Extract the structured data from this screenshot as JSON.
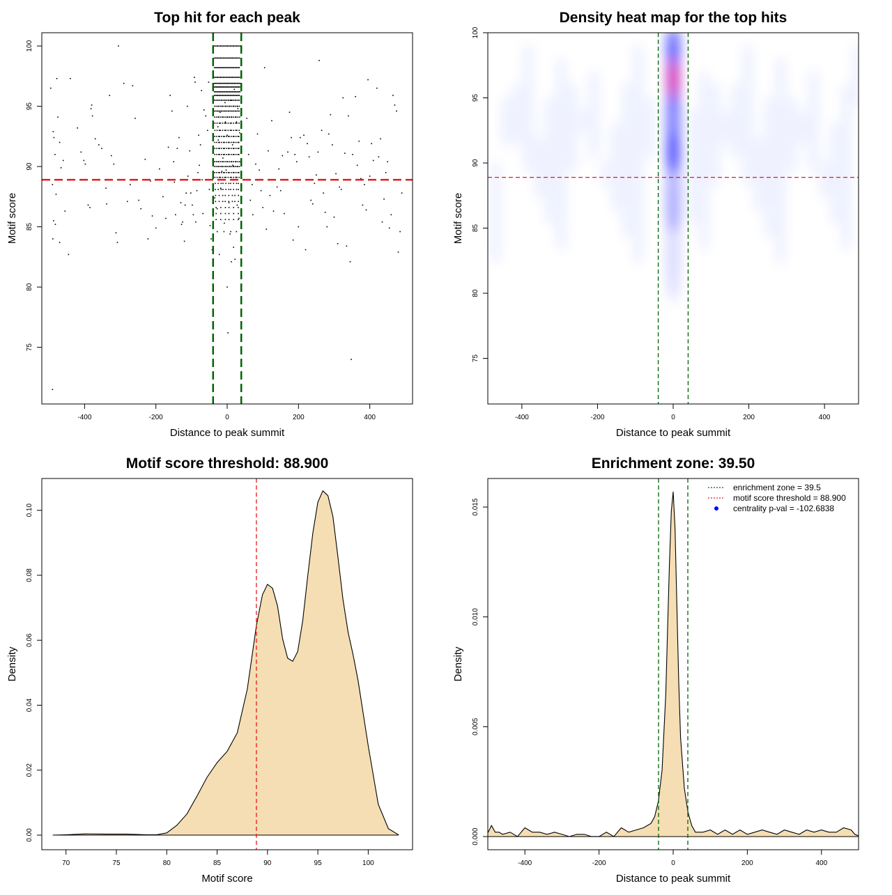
{
  "chart_data": [
    {
      "id": "scatter",
      "type": "scatter",
      "title": "Top hit for each peak",
      "xlabel": "Distance to peak summit",
      "ylabel": "Motif score",
      "xlim": [
        -520,
        520
      ],
      "ylim": [
        70.3,
        101.1
      ],
      "xticks": [
        -400,
        -200,
        0,
        200,
        400
      ],
      "yticks": [
        75,
        80,
        85,
        90,
        95,
        100
      ],
      "hline": 88.9,
      "vlines": [
        -39.5,
        39.5
      ],
      "colors": {
        "points": "#000000",
        "hline": "#e31a1c",
        "vlines": "#006400"
      },
      "points": [
        [
          -490,
          71.5
        ],
        [
          -495,
          96.5
        ],
        [
          -488,
          92.9
        ],
        [
          -486,
          92.4
        ],
        [
          -483,
          91.0
        ],
        [
          -490,
          88.5
        ],
        [
          -480,
          87.7
        ],
        [
          -478,
          97.3
        ],
        [
          -475,
          94.1
        ],
        [
          -470,
          92.0
        ],
        [
          -466,
          89.9
        ],
        [
          -460,
          90.5
        ],
        [
          -455,
          86.3
        ],
        [
          -487,
          85.5
        ],
        [
          -482,
          85.2
        ],
        [
          -489,
          84.0
        ],
        [
          -470,
          83.7
        ],
        [
          -445,
          82.7
        ],
        [
          -440,
          97.3
        ],
        [
          -420,
          93.2
        ],
        [
          -410,
          91.2
        ],
        [
          -402,
          90.5
        ],
        [
          -398,
          90.2
        ],
        [
          -402,
          88.9
        ],
        [
          -390,
          86.8
        ],
        [
          -385,
          86.6
        ],
        [
          -380,
          95.1
        ],
        [
          -382,
          94.8
        ],
        [
          -378,
          94.2
        ],
        [
          -370,
          92.3
        ],
        [
          -360,
          91.8
        ],
        [
          -352,
          91.5
        ],
        [
          -340,
          88.2
        ],
        [
          -338,
          86.9
        ],
        [
          -330,
          95.9
        ],
        [
          -325,
          90.9
        ],
        [
          -318,
          90.2
        ],
        [
          -312,
          84.5
        ],
        [
          -308,
          83.7
        ],
        [
          -305,
          100.0
        ],
        [
          -290,
          96.9
        ],
        [
          -280,
          87.1
        ],
        [
          -272,
          88.5
        ],
        [
          -265,
          96.7
        ],
        [
          -258,
          94.0
        ],
        [
          -248,
          87.2
        ],
        [
          -242,
          86.5
        ],
        [
          -230,
          90.6
        ],
        [
          -222,
          84.0
        ],
        [
          -215,
          88.8
        ],
        [
          -210,
          85.9
        ],
        [
          -200,
          84.9
        ],
        [
          -190,
          89.8
        ],
        [
          -180,
          87.5
        ],
        [
          -172,
          85.7
        ],
        [
          -165,
          91.6
        ],
        [
          -160,
          95.9
        ],
        [
          -155,
          94.6
        ],
        [
          -150,
          90.4
        ],
        [
          -148,
          88.7
        ],
        [
          -145,
          86.0
        ],
        [
          -140,
          91.5
        ],
        [
          -135,
          92.4
        ],
        [
          -130,
          87.0
        ],
        [
          -128,
          85.2
        ],
        [
          -125,
          85.4
        ],
        [
          -120,
          83.8
        ],
        [
          -118,
          86.8
        ],
        [
          -115,
          87.8
        ],
        [
          -112,
          95.0
        ],
        [
          -110,
          89.2
        ],
        [
          -105,
          91.3
        ],
        [
          -102,
          87.8
        ],
        [
          -98,
          86.8
        ],
        [
          -95,
          86.0
        ],
        [
          -92,
          97.4
        ],
        [
          -90,
          97.0
        ],
        [
          -88,
          85.4
        ],
        [
          -85,
          88.0
        ],
        [
          -82,
          89.5
        ],
        [
          -80,
          92.6
        ],
        [
          -78,
          90.1
        ],
        [
          -75,
          91.8
        ],
        [
          -72,
          96.3
        ],
        [
          -70,
          88.9
        ],
        [
          -68,
          86.1
        ],
        [
          -65,
          94.7
        ],
        [
          -60,
          94.2
        ],
        [
          -55,
          93.0
        ],
        [
          -52,
          97.0
        ],
        [
          -50,
          88.1
        ],
        [
          -48,
          85.1
        ],
        [
          -45,
          84.0
        ],
        [
          -42,
          83.1
        ],
        [
          55,
          94.0
        ],
        [
          60,
          91.0
        ],
        [
          65,
          87.2
        ],
        [
          70,
          88.5
        ],
        [
          72,
          86.0
        ],
        [
          80,
          90.2
        ],
        [
          85,
          92.7
        ],
        [
          90,
          89.7
        ],
        [
          95,
          88.0
        ],
        [
          100,
          86.6
        ],
        [
          105,
          98.2
        ],
        [
          110,
          84.8
        ],
        [
          115,
          91.3
        ],
        [
          120,
          87.6
        ],
        [
          125,
          93.8
        ],
        [
          130,
          86.3
        ],
        [
          140,
          88.3
        ],
        [
          145,
          89.8
        ],
        [
          150,
          88.0
        ],
        [
          155,
          90.9
        ],
        [
          160,
          86.1
        ],
        [
          170,
          91.2
        ],
        [
          175,
          94.5
        ],
        [
          180,
          92.4
        ],
        [
          185,
          83.9
        ],
        [
          190,
          91.0
        ],
        [
          195,
          90.4
        ],
        [
          200,
          85.0
        ],
        [
          205,
          92.4
        ],
        [
          215,
          92.6
        ],
        [
          220,
          83.1
        ],
        [
          225,
          91.9
        ],
        [
          230,
          90.8
        ],
        [
          235,
          87.2
        ],
        [
          240,
          86.9
        ],
        [
          245,
          88.6
        ],
        [
          250,
          89.3
        ],
        [
          255,
          91.2
        ],
        [
          258,
          98.8
        ],
        [
          265,
          93.0
        ],
        [
          270,
          87.8
        ],
        [
          275,
          86.2
        ],
        [
          280,
          85.0
        ],
        [
          285,
          92.7
        ],
        [
          290,
          94.3
        ],
        [
          295,
          91.8
        ],
        [
          300,
          85.8
        ],
        [
          305,
          89.4
        ],
        [
          310,
          83.6
        ],
        [
          315,
          88.3
        ],
        [
          320,
          88.1
        ],
        [
          325,
          95.7
        ],
        [
          330,
          91.1
        ],
        [
          335,
          83.4
        ],
        [
          340,
          94.2
        ],
        [
          345,
          82.1
        ],
        [
          348,
          74.0
        ],
        [
          352,
          91.0
        ],
        [
          360,
          95.8
        ],
        [
          365,
          90.1
        ],
        [
          370,
          92.1
        ],
        [
          375,
          89.0
        ],
        [
          380,
          86.8
        ],
        [
          385,
          88.5
        ],
        [
          390,
          86.4
        ],
        [
          395,
          97.2
        ],
        [
          400,
          89.2
        ],
        [
          405,
          91.9
        ],
        [
          410,
          90.5
        ],
        [
          415,
          88.9
        ],
        [
          420,
          96.5
        ],
        [
          425,
          90.8
        ],
        [
          430,
          92.3
        ],
        [
          435,
          85.4
        ],
        [
          440,
          87.3
        ],
        [
          445,
          89.5
        ],
        [
          450,
          90.4
        ],
        [
          455,
          84.9
        ],
        [
          460,
          86.0
        ],
        [
          465,
          95.9
        ],
        [
          470,
          95.1
        ],
        [
          475,
          94.6
        ],
        [
          480,
          82.9
        ],
        [
          485,
          84.6
        ],
        [
          490,
          87.8
        ],
        [
          -30,
          90.4
        ],
        [
          -25,
          92.2
        ],
        [
          -20,
          94.5
        ],
        [
          -15,
          89.6
        ],
        [
          -10,
          91.0
        ],
        [
          -5,
          93.7
        ],
        [
          0,
          92.6
        ],
        [
          5,
          87.0
        ],
        [
          10,
          95.5
        ],
        [
          15,
          91.8
        ],
        [
          20,
          96.4
        ],
        [
          25,
          89.1
        ],
        [
          30,
          94.8
        ],
        [
          35,
          92.8
        ],
        [
          -28,
          86.5
        ],
        [
          -18,
          88.2
        ],
        [
          -8,
          85.3
        ],
        [
          8,
          84.4
        ],
        [
          18,
          83.3
        ],
        [
          28,
          86.8
        ],
        [
          -22,
          82.7
        ],
        [
          12,
          82.1
        ],
        [
          22,
          82.3
        ],
        [
          -35,
          87.4
        ],
        [
          33,
          85.7
        ],
        [
          0,
          80.0
        ],
        [
          -3,
          89.7
        ],
        [
          2,
          76.2
        ],
        [
          -12,
          90.7
        ],
        [
          16,
          90.1
        ],
        [
          -26,
          93.3
        ],
        [
          26,
          93.7
        ],
        [
          -6,
          95.3
        ],
        [
          6,
          94.1
        ]
      ],
      "stripes": [
        {
          "y": 100.0,
          "n": 24
        },
        {
          "y": 99.0,
          "n": 26
        },
        {
          "y": 98.2,
          "n": 28
        },
        {
          "y": 97.4,
          "n": 26
        },
        {
          "y": 96.9,
          "n": 30
        },
        {
          "y": 96.6,
          "n": 32
        },
        {
          "y": 96.2,
          "n": 30
        },
        {
          "y": 95.9,
          "n": 28
        },
        {
          "y": 95.5,
          "n": 22
        },
        {
          "y": 95.0,
          "n": 20
        },
        {
          "y": 94.6,
          "n": 22
        },
        {
          "y": 94.1,
          "n": 18
        },
        {
          "y": 93.6,
          "n": 14
        },
        {
          "y": 93.0,
          "n": 14
        },
        {
          "y": 92.5,
          "n": 16
        },
        {
          "y": 92.0,
          "n": 16
        },
        {
          "y": 91.5,
          "n": 16
        },
        {
          "y": 91.0,
          "n": 16
        },
        {
          "y": 90.4,
          "n": 18
        },
        {
          "y": 90.0,
          "n": 20
        },
        {
          "y": 89.5,
          "n": 16
        },
        {
          "y": 89.1,
          "n": 14
        },
        {
          "y": 88.6,
          "n": 10
        },
        {
          "y": 88.1,
          "n": 10
        },
        {
          "y": 87.6,
          "n": 8
        },
        {
          "y": 87.1,
          "n": 8
        },
        {
          "y": 86.6,
          "n": 6
        },
        {
          "y": 86.1,
          "n": 6
        },
        {
          "y": 85.6,
          "n": 6
        },
        {
          "y": 84.6,
          "n": 4
        }
      ]
    },
    {
      "id": "heatmap",
      "type": "heatmap",
      "title": "Density heat map for the top hits",
      "xlabel": "Distance to peak summit",
      "ylabel": "Motif score",
      "xlim": [
        -490,
        490
      ],
      "ylim": [
        71.5,
        100.0
      ],
      "xticks": [
        -400,
        -200,
        0,
        200,
        400
      ],
      "yticks": [
        75,
        80,
        85,
        90,
        95,
        100
      ],
      "hline": 88.9,
      "vlines": [
        -39.5,
        39.5
      ],
      "colors": {
        "low": "#ffffff",
        "mid": "#0000ff",
        "high": "#ff0000",
        "hline": "#e31a1c",
        "vlines": "#006400"
      },
      "hotspots": [
        {
          "x": 0,
          "y": 96.5,
          "sx": 12,
          "sy": 2.2,
          "level": 1.0
        },
        {
          "x": 0,
          "y": 99.0,
          "sx": 14,
          "sy": 1.5,
          "level": 0.55
        },
        {
          "x": 0,
          "y": 90.8,
          "sx": 12,
          "sy": 1.6,
          "level": 0.72
        },
        {
          "x": 0,
          "y": 93.3,
          "sx": 14,
          "sy": 2.2,
          "level": 0.5
        },
        {
          "x": 0,
          "y": 87.5,
          "sx": 16,
          "sy": 2.8,
          "level": 0.28
        },
        {
          "x": 0,
          "y": 83.0,
          "sx": 18,
          "sy": 3.5,
          "level": 0.1
        }
      ]
    },
    {
      "id": "score-density",
      "type": "area",
      "title": "Motif score threshold: 88.900",
      "xlabel": "Motif score",
      "ylabel": "Density",
      "xlim": [
        67.6,
        104.4
      ],
      "ylim": [
        -0.0045,
        0.1098
      ],
      "xticks": [
        70,
        75,
        80,
        85,
        90,
        95,
        100
      ],
      "yticks": [
        0.0,
        0.02,
        0.04,
        0.06,
        0.08,
        0.1
      ],
      "ytick_labels": [
        "0.00",
        "0.02",
        "0.04",
        "0.06",
        "0.08",
        "0.10"
      ],
      "vline": 88.9,
      "colors": {
        "fill": "#f5deb3",
        "line": "#000000",
        "vline": "#e31a1c"
      },
      "x": [
        68.7,
        70,
        72,
        74,
        76,
        78,
        79,
        80,
        81,
        82,
        83,
        84,
        85,
        86,
        87,
        88,
        88.9,
        89.5,
        90,
        90.5,
        91,
        91.5,
        92,
        92.5,
        93,
        93.5,
        94,
        94.5,
        95,
        95.5,
        96,
        96.5,
        97,
        97.5,
        98,
        98.5,
        99,
        100,
        101,
        102,
        103
      ],
      "y": [
        0.0,
        0.0001,
        0.0004,
        0.0003,
        0.0003,
        0.0001,
        0.0001,
        0.0007,
        0.003,
        0.0065,
        0.012,
        0.0178,
        0.0223,
        0.0258,
        0.0315,
        0.045,
        0.0645,
        0.074,
        0.0772,
        0.076,
        0.0705,
        0.0605,
        0.0545,
        0.0535,
        0.0565,
        0.066,
        0.08,
        0.093,
        0.1025,
        0.106,
        0.1045,
        0.098,
        0.0855,
        0.0725,
        0.0625,
        0.0555,
        0.0475,
        0.0275,
        0.0095,
        0.002,
        0.0001
      ]
    },
    {
      "id": "distance-density",
      "type": "area",
      "title": "Enrichment zone: 39.50",
      "xlabel": "Distance to peak summit",
      "ylabel": "Density",
      "xlim": [
        -500,
        500
      ],
      "ylim": [
        -0.0006,
        0.0163
      ],
      "xticks": [
        -400,
        -200,
        0,
        200,
        400
      ],
      "yticks": [
        0.0,
        0.005,
        0.01,
        0.015
      ],
      "ytick_labels": [
        "0.000",
        "0.005",
        "0.010",
        "0.015"
      ],
      "vlines": [
        -39.5,
        39.5
      ],
      "colors": {
        "fill": "#f5deb3",
        "line": "#000000",
        "vlines": "#006400",
        "legend_point": "#0000ff"
      },
      "x": [
        -505,
        -490,
        -480,
        -470,
        -460,
        -440,
        -420,
        -400,
        -380,
        -360,
        -340,
        -320,
        -300,
        -280,
        -260,
        -240,
        -220,
        -200,
        -180,
        -160,
        -140,
        -120,
        -100,
        -80,
        -60,
        -50,
        -40,
        -30,
        -20,
        -15,
        -10,
        -5,
        0,
        5,
        10,
        15,
        20,
        30,
        40,
        50,
        60,
        80,
        100,
        120,
        140,
        160,
        180,
        200,
        220,
        240,
        260,
        280,
        300,
        320,
        340,
        360,
        380,
        400,
        420,
        440,
        460,
        480,
        490,
        505
      ],
      "y": [
        0.0,
        0.0005,
        0.0002,
        0.0002,
        0.0001,
        0.0002,
        0.0,
        0.0004,
        0.0002,
        0.0002,
        0.0001,
        0.0002,
        0.0001,
        0.0,
        0.0001,
        0.0001,
        0.0,
        0.0,
        0.0002,
        0.0,
        0.0004,
        0.0002,
        0.0003,
        0.0004,
        0.0006,
        0.0009,
        0.0016,
        0.003,
        0.0065,
        0.0095,
        0.0125,
        0.0148,
        0.0157,
        0.014,
        0.0105,
        0.007,
        0.0045,
        0.0022,
        0.0011,
        0.0005,
        0.0002,
        0.0002,
        0.0003,
        0.0001,
        0.0003,
        0.0001,
        0.0003,
        0.0001,
        0.0002,
        0.0003,
        0.0002,
        0.0001,
        0.0003,
        0.0002,
        0.0001,
        0.0003,
        0.0002,
        0.0003,
        0.0002,
        0.0002,
        0.0004,
        0.0003,
        0.0001,
        0.0
      ],
      "legend": [
        {
          "label": "enrichment zone = 39.5",
          "style": "dotted",
          "color": "#006400"
        },
        {
          "label": "motif score threshold = 88.900",
          "style": "dotted",
          "color": "#e31a1c"
        },
        {
          "label": "centrality p-val = -102.6838",
          "style": "point",
          "color": "#0000ff"
        }
      ]
    }
  ]
}
